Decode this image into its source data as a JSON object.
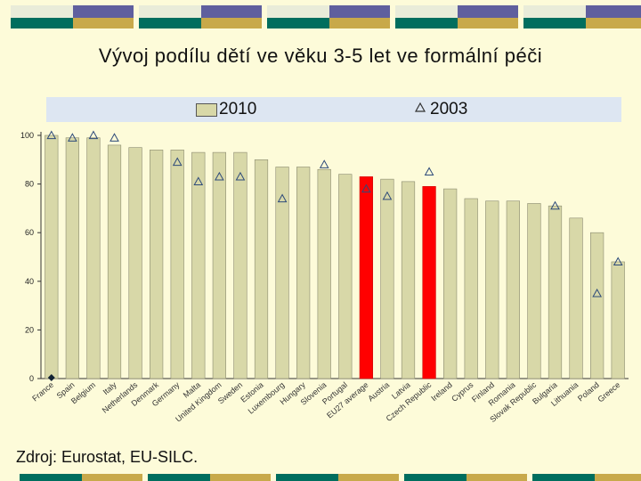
{
  "title": "Vývoj podílu dětí ve věku 3-5 let ve formální péči",
  "source": "Zdroj: Eurostat, EU-SILC.",
  "colors": {
    "bar": "#d8d8a8",
    "bar_highlight": "#ff0000",
    "deco_teal": "#006e5e",
    "deco_blue": "#5f5f9e",
    "deco_gold": "#c8a94a",
    "legend_bg": "#dde6f2"
  },
  "chart_data": {
    "type": "bar",
    "title": "Vývoj podílu dětí ve věku 3-5 let ve formální péči",
    "ylim": [
      0,
      100
    ],
    "yticks": [
      0,
      20,
      40,
      60,
      80,
      100
    ],
    "grid": false,
    "legend_position": "top",
    "categories": [
      "France",
      "Spain",
      "Belgium",
      "Italy",
      "Netherlands",
      "Denmark",
      "Germany",
      "Malta",
      "United Kingdom",
      "Sweden",
      "Estonia",
      "Luxembourg",
      "Hungary",
      "Slovenia",
      "Portugal",
      "EU27 average",
      "Austria",
      "Latvia",
      "Czech Republic",
      "Ireland",
      "Cyprus",
      "Finland",
      "Romania",
      "Slovak Republic",
      "Bulgaria",
      "Lithuania",
      "Poland",
      "Greece"
    ],
    "highlighted": [
      "EU27 average",
      "Czech Republic"
    ],
    "series": [
      {
        "name": "2010",
        "marker": "bar",
        "values": [
          100,
          99,
          99,
          96,
          95,
          94,
          94,
          93,
          93,
          93,
          90,
          87,
          87,
          86,
          84,
          83,
          82,
          81,
          79,
          78,
          74,
          73,
          73,
          72,
          71,
          66,
          60,
          48
        ]
      },
      {
        "name": "2003",
        "marker": "triangle",
        "values": [
          100,
          99,
          100,
          99,
          null,
          null,
          89,
          81,
          83,
          83,
          null,
          74,
          null,
          88,
          null,
          78,
          75,
          null,
          85,
          null,
          null,
          null,
          null,
          null,
          71,
          null,
          35,
          48
        ]
      }
    ]
  }
}
